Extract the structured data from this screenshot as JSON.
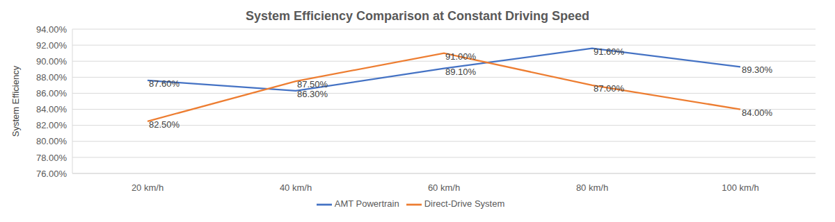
{
  "chart_data": {
    "type": "line",
    "title": "System Efficiency Comparison at Constant Driving Speed",
    "y_label": "System Efficiency",
    "categories": [
      "20 km/h",
      "40 km/h",
      "60 km/h",
      "80 km/h",
      "100 km/h"
    ],
    "series": [
      {
        "name": "AMT Powertrain",
        "color": "#4472c4",
        "values": [
          87.6,
          86.3,
          89.1,
          91.6,
          89.3
        ],
        "value_labels": [
          "87.60%",
          "86.30%",
          "89.10%",
          "91.60%",
          "89.30%"
        ]
      },
      {
        "name": "Direct-Drive System",
        "color": "#ed7d31",
        "values": [
          82.5,
          87.5,
          91.0,
          87.0,
          84.0
        ],
        "value_labels": [
          "82.50%",
          "87.50%",
          "91.00%",
          "87.00%",
          "84.00%"
        ]
      }
    ],
    "ylim": [
      76,
      94
    ],
    "yticks": [
      {
        "value": 76,
        "label": "76.00%"
      },
      {
        "value": 78,
        "label": "78.00%"
      },
      {
        "value": 80,
        "label": "80.00%"
      },
      {
        "value": 82,
        "label": "82.00%"
      },
      {
        "value": 84,
        "label": "84.00%"
      },
      {
        "value": 86,
        "label": "86.00%"
      },
      {
        "value": 88,
        "label": "88.00%"
      },
      {
        "value": 90,
        "label": "90.00%"
      },
      {
        "value": 92,
        "label": "92.00%"
      },
      {
        "value": 94,
        "label": "94.00%"
      }
    ],
    "grid": true,
    "legend": "bottom",
    "data_labels": true
  }
}
